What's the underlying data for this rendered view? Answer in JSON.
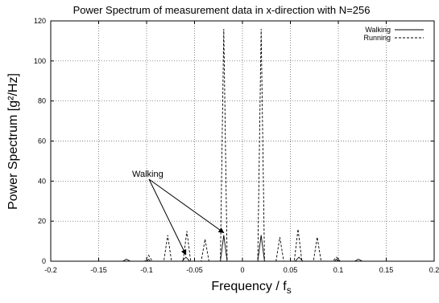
{
  "chart_data": {
    "type": "line",
    "title": "Power Spectrum of measurement data in x-direction with N=256",
    "xlabel": "Frequency / f",
    "xlabel_subscript": "s",
    "ylabel": "Power Spectrum [g²/Hz]",
    "xlim": [
      -0.2,
      0.2
    ],
    "ylim": [
      0,
      120
    ],
    "x_ticks": [
      "-0.2",
      "-0.15",
      "-0.1",
      "-0.05",
      "0",
      "0.05",
      "0.1",
      "0.15",
      "0.2"
    ],
    "y_ticks": [
      "0",
      "20",
      "40",
      "60",
      "80",
      "100",
      "120"
    ],
    "grid": true,
    "legend_position": "top-right",
    "annotation": "Walking",
    "series": [
      {
        "name": "Walking",
        "style": "solid",
        "color": "#000000",
        "x": [
          -0.2,
          -0.125,
          -0.121,
          -0.117,
          -0.1,
          -0.098,
          -0.096,
          -0.08,
          -0.063,
          -0.059,
          -0.055,
          -0.04,
          -0.023,
          -0.0195,
          -0.016,
          0,
          0.016,
          0.0195,
          0.023,
          0.04,
          0.055,
          0.059,
          0.063,
          0.08,
          0.096,
          0.098,
          0.1,
          0.117,
          0.121,
          0.125,
          0.2
        ],
        "y": [
          0,
          0,
          1,
          0,
          0,
          1,
          0,
          0,
          0,
          2,
          0,
          0,
          0,
          13,
          0,
          0,
          0,
          13,
          0,
          0,
          0,
          2,
          0,
          0,
          0,
          1,
          0,
          0,
          1,
          0,
          0
        ]
      },
      {
        "name": "Running",
        "style": "dashed",
        "color": "#000000",
        "x": [
          -0.2,
          -0.102,
          -0.098,
          -0.094,
          -0.082,
          -0.078,
          -0.074,
          -0.062,
          -0.058,
          -0.054,
          -0.043,
          -0.039,
          -0.035,
          -0.023,
          -0.0195,
          -0.016,
          0,
          0.016,
          0.0195,
          0.023,
          0.035,
          0.039,
          0.043,
          0.054,
          0.058,
          0.062,
          0.074,
          0.078,
          0.082,
          0.094,
          0.098,
          0.102,
          0.2
        ],
        "y": [
          0,
          0,
          3,
          0,
          0,
          13,
          0,
          0,
          15,
          0,
          0,
          11,
          0,
          0,
          116,
          0,
          0,
          0,
          116,
          0,
          0,
          12,
          0,
          0,
          16,
          0,
          0,
          12,
          0,
          0,
          2,
          0,
          0
        ]
      }
    ]
  }
}
